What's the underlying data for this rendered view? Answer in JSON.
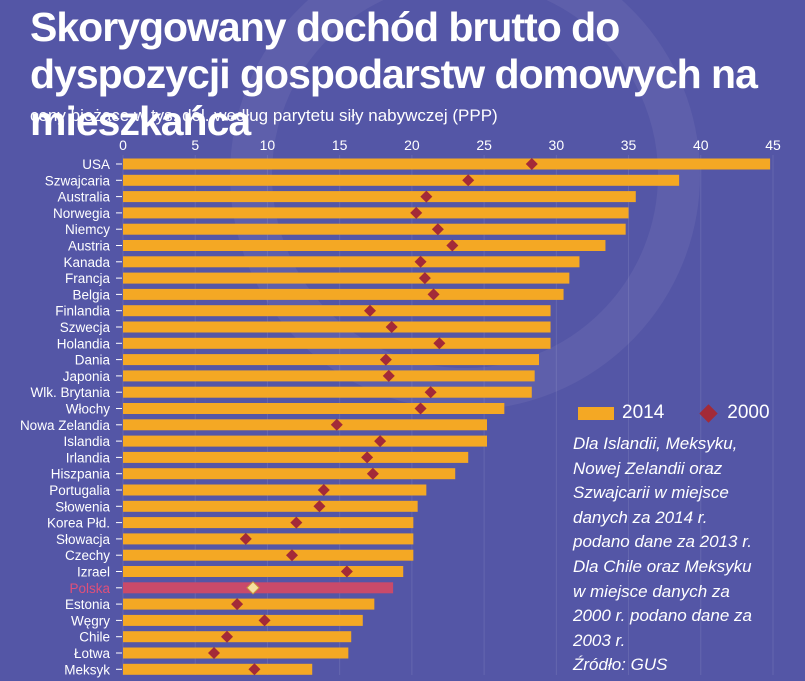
{
  "title": "Skorygowany dochód brutto do dyspozycji gospodarstw domowych na mieszkańca",
  "subtitle": "ceny bieżące w tys. dol. według parytetu siły nabywczej (PPP)",
  "legend": {
    "bar": "2014",
    "diamond": "2000"
  },
  "note": "Dla Islandii, Meksyku,\nNowej Zelandii oraz\nSzwajcarii w miejsce\ndanych za 2014 r.\npodano dane za 2013 r.\nDla Chile oraz Meksyku\nw miejsce danych za\n2000 r. podano dane za\n2003 r.\nŹródło: GUS",
  "colors": {
    "background": "#5456a6",
    "bar": "#f4a824",
    "highlight_bar": "#c94a6a",
    "diamond": "#a32a38",
    "highlight_diamond": "#f5dfa0",
    "highlight_label": "#e0507a"
  },
  "chart_data": {
    "type": "bar",
    "orientation": "horizontal",
    "xlim": [
      0,
      45
    ],
    "xticks": [
      0,
      5,
      10,
      15,
      20,
      25,
      30,
      35,
      40,
      45
    ],
    "highlight": "Polska",
    "categories": [
      "USA",
      "Szwajcaria",
      "Australia",
      "Norwegia",
      "Niemcy",
      "Austria",
      "Kanada",
      "Francja",
      "Belgia",
      "Finlandia",
      "Szwecja",
      "Holandia",
      "Dania",
      "Japonia",
      "Wlk. Brytania",
      "Włochy",
      "Nowa Zelandia",
      "Islandia",
      "Irlandia",
      "Hiszpania",
      "Portugalia",
      "Słowenia",
      "Korea Płd.",
      "Słowacja",
      "Czechy",
      "Izrael",
      "Polska",
      "Estonia",
      "Węgry",
      "Chile",
      "Łotwa",
      "Meksyk"
    ],
    "series": [
      {
        "name": "2014",
        "marker": "bar",
        "values": [
          44.8,
          38.5,
          35.5,
          35.0,
          34.8,
          33.4,
          31.6,
          30.9,
          30.5,
          29.6,
          29.6,
          29.6,
          28.8,
          28.5,
          28.3,
          26.4,
          25.2,
          25.2,
          23.9,
          23.0,
          21.0,
          20.4,
          20.1,
          20.1,
          20.1,
          19.4,
          18.7,
          17.4,
          16.6,
          15.8,
          15.6,
          13.1
        ]
      },
      {
        "name": "2000",
        "marker": "diamond",
        "values": [
          28.3,
          23.9,
          21.0,
          20.3,
          21.8,
          22.8,
          20.6,
          20.9,
          21.5,
          17.1,
          18.6,
          21.9,
          18.2,
          18.4,
          21.3,
          20.6,
          14.8,
          17.8,
          16.9,
          17.3,
          13.9,
          13.6,
          12.0,
          8.5,
          11.7,
          15.5,
          9.0,
          7.9,
          9.8,
          7.2,
          6.3,
          9.1
        ]
      }
    ]
  }
}
